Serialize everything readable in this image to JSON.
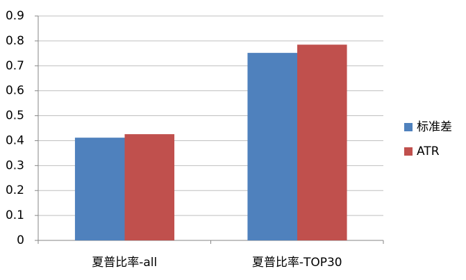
{
  "chart_data": {
    "type": "bar",
    "categories": [
      "夏普比率-all",
      "夏普比率-TOP30"
    ],
    "series": [
      {
        "name": "标准差",
        "color": "#4f81bd",
        "values": [
          0.412,
          0.752
        ]
      },
      {
        "name": "ATR",
        "color": "#c0504d",
        "values": [
          0.426,
          0.785
        ]
      }
    ],
    "ylim": [
      0,
      0.9
    ],
    "yticks": [
      0,
      0.1,
      0.2,
      0.3,
      0.4,
      0.5,
      0.6,
      0.7,
      0.8,
      0.9
    ],
    "grid": true,
    "legend": "right"
  }
}
